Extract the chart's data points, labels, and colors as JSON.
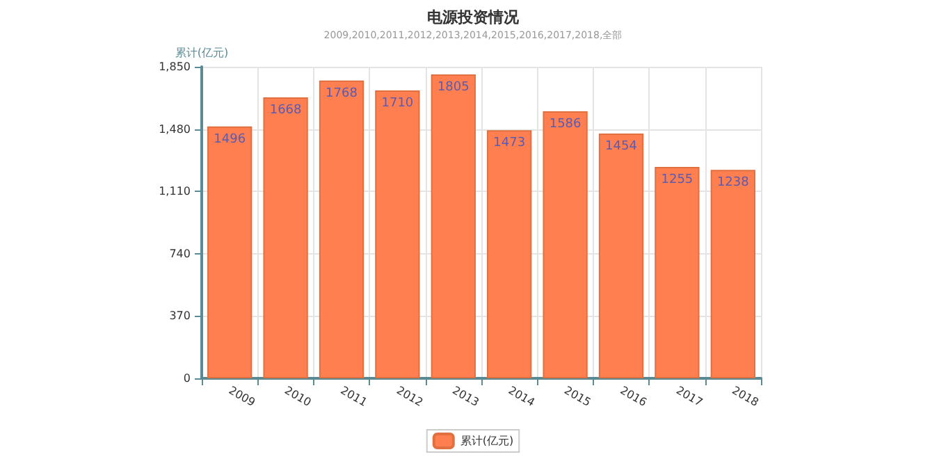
{
  "chart_data": {
    "type": "bar",
    "title": "电源投资情况",
    "subtitle": "2009,2010,2011,2012,2013,2014,2015,2016,2017,2018,全部",
    "ylabel": "累计(亿元)",
    "categories": [
      "2009",
      "2010",
      "2011",
      "2012",
      "2013",
      "2014",
      "2015",
      "2016",
      "2017",
      "2018"
    ],
    "series": [
      {
        "name": "累计(亿元)",
        "color": "#ff7f50",
        "values": [
          1496,
          1668,
          1768,
          1710,
          1805,
          1473,
          1586,
          1454,
          1255,
          1238
        ]
      }
    ],
    "ylim": [
      0,
      1850
    ],
    "yticks": [
      0,
      370,
      740,
      {
        "value": 1110,
        "label": "1,110"
      },
      {
        "value": 1480,
        "label": "1,480"
      },
      {
        "value": 1850,
        "label": "1,850"
      }
    ],
    "grid": true,
    "legend": "bottom",
    "data_labels": true
  }
}
